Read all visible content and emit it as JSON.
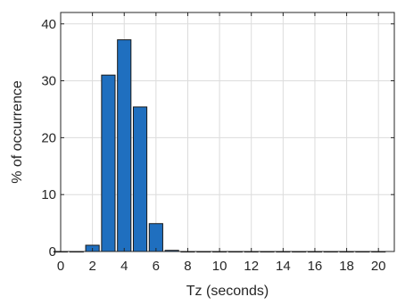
{
  "chart_data": {
    "type": "bar",
    "xlabel": "Tz (seconds)",
    "ylabel": "% of occurrence",
    "xlim": [
      0,
      21
    ],
    "ylim": [
      0,
      42
    ],
    "xticks": [
      0,
      2,
      4,
      6,
      8,
      10,
      12,
      14,
      16,
      18,
      20
    ],
    "yticks": [
      0,
      10,
      20,
      30,
      40
    ],
    "bar_width": 0.85,
    "bar_color": "#1f6fbf",
    "grid": true,
    "x": [
      0,
      1,
      2,
      3,
      4,
      5,
      6,
      7,
      8,
      9,
      10,
      11,
      12,
      13,
      14,
      15,
      16,
      17,
      18,
      19,
      20
    ],
    "values": [
      0,
      0,
      1.1,
      31,
      37.2,
      25.4,
      4.9,
      0.2,
      0,
      0,
      0,
      0,
      0,
      0,
      0,
      0,
      0,
      0,
      0,
      0,
      0
    ]
  }
}
